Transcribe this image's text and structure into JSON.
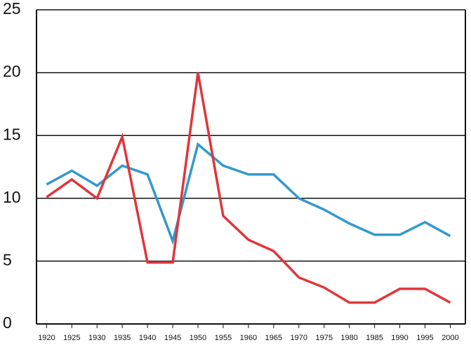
{
  "chart_data": {
    "type": "line",
    "x": [
      1920,
      1925,
      1930,
      1935,
      1940,
      1945,
      1950,
      1955,
      1960,
      1965,
      1970,
      1975,
      1980,
      1985,
      1990,
      1995,
      2000
    ],
    "series": [
      {
        "color": "#3399cc",
        "values": [
          11.1,
          12.2,
          11.0,
          12.6,
          11.9,
          6.6,
          14.3,
          12.6,
          11.9,
          11.9,
          10.0,
          9.1,
          8.0,
          7.1,
          7.1,
          8.1,
          7.0
        ]
      },
      {
        "color": "#e0353a",
        "values": [
          10.1,
          11.5,
          10.0,
          14.9,
          4.9,
          4.9,
          20.0,
          8.6,
          6.7,
          5.8,
          3.7,
          2.9,
          1.7,
          1.7,
          2.8,
          2.8,
          1.7
        ]
      }
    ],
    "xlim": [
      1918,
      2003
    ],
    "xticks": [
      1920,
      1925,
      1930,
      1935,
      1940,
      1945,
      1950,
      1955,
      1960,
      1965,
      1970,
      1975,
      1980,
      1985,
      1990,
      1995,
      2000
    ],
    "ylim": [
      0,
      25
    ],
    "yticks": [
      0,
      5,
      10,
      15,
      20,
      25
    ],
    "grid": true
  }
}
